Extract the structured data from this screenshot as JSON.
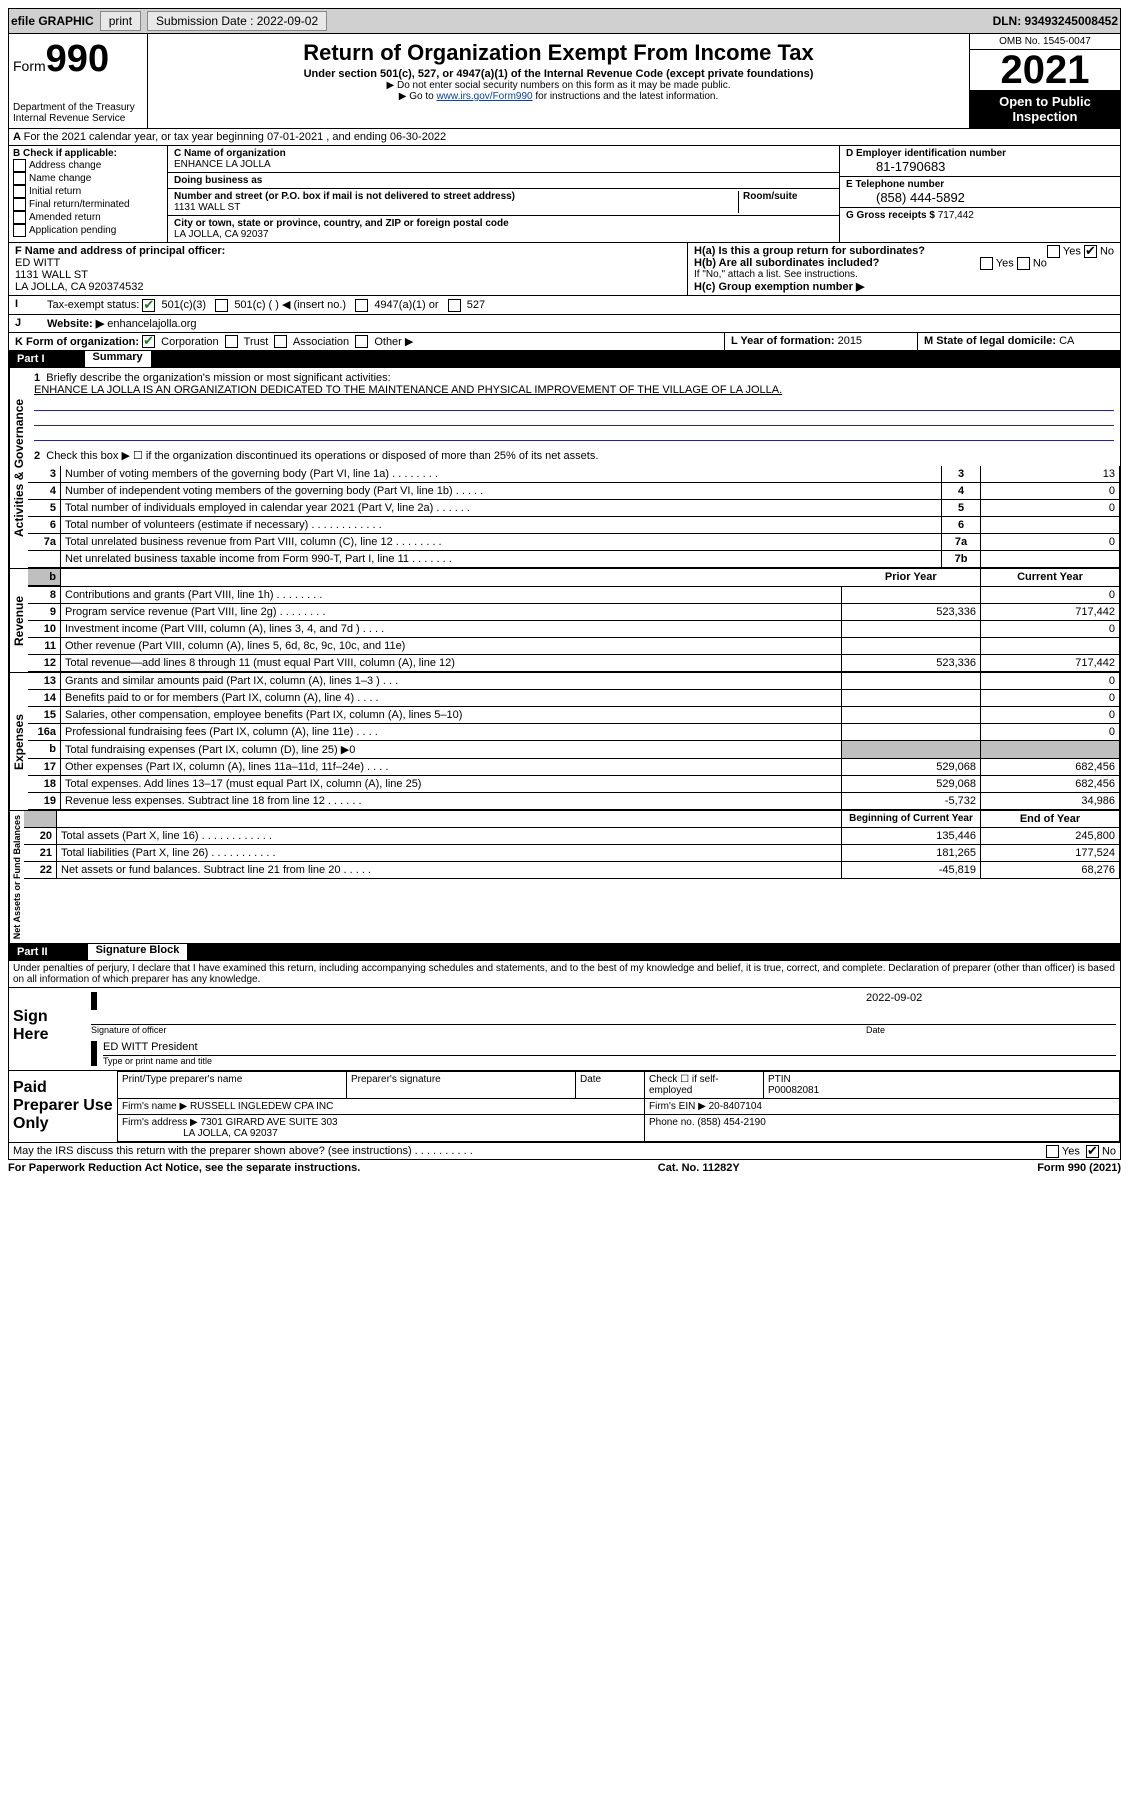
{
  "topbar": {
    "efile": "efile GRAPHIC",
    "print": "print",
    "sub_label": "Submission Date : 2022-09-02",
    "dln": "DLN: 93493245008452"
  },
  "header": {
    "form_word": "Form",
    "form_num": "990",
    "dept": "Department of the Treasury Internal Revenue Service",
    "title": "Return of Organization Exempt From Income Tax",
    "sub1": "Under section 501(c), 527, or 4947(a)(1) of the Internal Revenue Code (except private foundations)",
    "sub2": "▶ Do not enter social security numbers on this form as it may be made public.",
    "sub3_pre": "▶ Go to ",
    "sub3_link": "www.irs.gov/Form990",
    "sub3_post": " for instructions and the latest information.",
    "omb": "OMB No. 1545-0047",
    "year": "2021",
    "open": "Open to Public Inspection"
  },
  "A": {
    "text": "For the 2021 calendar year, or tax year beginning 07-01-2021   , and ending 06-30-2022"
  },
  "B": {
    "label": "B Check if applicable:",
    "opts": [
      "Address change",
      "Name change",
      "Initial return",
      "Final return/terminated",
      "Amended return",
      "Application pending"
    ]
  },
  "C": {
    "name_label": "C Name of organization",
    "name": "ENHANCE LA JOLLA",
    "dba_label": "Doing business as",
    "addr_label": "Number and street (or P.O. box if mail is not delivered to street address)",
    "room_label": "Room/suite",
    "addr": "1131 WALL ST",
    "city_label": "City or town, state or province, country, and ZIP or foreign postal code",
    "city": "LA JOLLA, CA  92037"
  },
  "D": {
    "label": "D Employer identification number",
    "val": "81-1790683"
  },
  "E": {
    "label": "E Telephone number",
    "val": "(858) 444-5892"
  },
  "G": {
    "label": "G Gross receipts $",
    "val": "717,442"
  },
  "F": {
    "label": "F Name and address of principal officer:",
    "name": "ED WITT",
    "addr1": "1131 WALL ST",
    "addr2": "LA JOLLA, CA  920374532"
  },
  "H": {
    "a": "H(a)  Is this a group return for subordinates?",
    "b": "H(b)  Are all subordinates included?",
    "b_note": "If \"No,\" attach a list. See instructions.",
    "c": "H(c)  Group exemption number ▶"
  },
  "I": {
    "label": "Tax-exempt status:",
    "o1": "501(c)(3)",
    "o2": "501(c) (   ) ◀ (insert no.)",
    "o3": "4947(a)(1) or",
    "o4": "527"
  },
  "J": {
    "label": "Website: ▶",
    "val": "enhancelajolla.org"
  },
  "K": {
    "label": "K Form of organization:",
    "o1": "Corporation",
    "o2": "Trust",
    "o3": "Association",
    "o4": "Other ▶"
  },
  "L": {
    "label": "L Year of formation:",
    "val": "2015"
  },
  "M": {
    "label": "M State of legal domicile:",
    "val": "CA"
  },
  "part1": {
    "header": "Part I",
    "title": "Summary",
    "l1_label": "Briefly describe the organization's mission or most significant activities:",
    "l1_text": "ENHANCE LA JOLLA IS AN ORGANIZATION DEDICATED TO THE MAINTENANCE AND PHYSICAL IMPROVEMENT OF THE VILLAGE OF LA JOLLA.",
    "l2": "Check this box ▶ ☐  if the organization discontinued its operations or disposed of more than 25% of its net assets.",
    "lines_gov": [
      {
        "n": "3",
        "d": "Number of voting members of the governing body (Part VI, line 1a)   .   .   .   .   .   .   .   .",
        "b": "3",
        "v": "13"
      },
      {
        "n": "4",
        "d": "Number of independent voting members of the governing body (Part VI, line 1b)   .   .   .   .   .",
        "b": "4",
        "v": "0"
      },
      {
        "n": "5",
        "d": "Total number of individuals employed in calendar year 2021 (Part V, line 2a)   .   .   .   .   .   .",
        "b": "5",
        "v": "0"
      },
      {
        "n": "6",
        "d": "Total number of volunteers (estimate if necessary)   .   .   .   .   .   .   .   .   .   .   .   .",
        "b": "6",
        "v": ""
      },
      {
        "n": "7a",
        "d": "Total unrelated business revenue from Part VIII, column (C), line 12   .   .   .   .   .   .   .   .",
        "b": "7a",
        "v": "0"
      },
      {
        "n": "",
        "d": "Net unrelated business taxable income from Form 990-T, Part I, line 11   .   .   .   .   .   .   .",
        "b": "7b",
        "v": ""
      }
    ],
    "col_prior": "Prior Year",
    "col_current": "Current Year",
    "lines_rev": [
      {
        "n": "8",
        "d": "Contributions and grants (Part VIII, line 1h)   .   .   .   .   .   .   .   .",
        "p": "",
        "c": "0"
      },
      {
        "n": "9",
        "d": "Program service revenue (Part VIII, line 2g)   .   .   .   .   .   .   .   .",
        "p": "523,336",
        "c": "717,442"
      },
      {
        "n": "10",
        "d": "Investment income (Part VIII, column (A), lines 3, 4, and 7d )   .   .   .   .",
        "p": "",
        "c": "0"
      },
      {
        "n": "11",
        "d": "Other revenue (Part VIII, column (A), lines 5, 6d, 8c, 9c, 10c, and 11e)",
        "p": "",
        "c": ""
      },
      {
        "n": "12",
        "d": "Total revenue—add lines 8 through 11 (must equal Part VIII, column (A), line 12)",
        "p": "523,336",
        "c": "717,442"
      }
    ],
    "lines_exp": [
      {
        "n": "13",
        "d": "Grants and similar amounts paid (Part IX, column (A), lines 1–3 )   .   .   .",
        "p": "",
        "c": "0"
      },
      {
        "n": "14",
        "d": "Benefits paid to or for members (Part IX, column (A), line 4)   .   .   .   .",
        "p": "",
        "c": "0"
      },
      {
        "n": "15",
        "d": "Salaries, other compensation, employee benefits (Part IX, column (A), lines 5–10)",
        "p": "",
        "c": "0"
      },
      {
        "n": "16a",
        "d": "Professional fundraising fees (Part IX, column (A), line 11e)   .   .   .   .",
        "p": "",
        "c": "0"
      },
      {
        "n": "b",
        "d": "Total fundraising expenses (Part IX, column (D), line 25) ▶0",
        "p": "grey",
        "c": "grey"
      },
      {
        "n": "17",
        "d": "Other expenses (Part IX, column (A), lines 11a–11d, 11f–24e)   .   .   .   .",
        "p": "529,068",
        "c": "682,456"
      },
      {
        "n": "18",
        "d": "Total expenses. Add lines 13–17 (must equal Part IX, column (A), line 25)",
        "p": "529,068",
        "c": "682,456"
      },
      {
        "n": "19",
        "d": "Revenue less expenses. Subtract line 18 from line 12   .   .   .   .   .   .",
        "p": "-5,732",
        "c": "34,986"
      }
    ],
    "col_begin": "Beginning of Current Year",
    "col_end": "End of Year",
    "lines_net": [
      {
        "n": "20",
        "d": "Total assets (Part X, line 16)   .   .   .   .   .   .   .   .   .   .   .   .",
        "p": "135,446",
        "c": "245,800"
      },
      {
        "n": "21",
        "d": "Total liabilities (Part X, line 26)   .   .   .   .   .   .   .   .   .   .   .",
        "p": "181,265",
        "c": "177,524"
      },
      {
        "n": "22",
        "d": "Net assets or fund balances. Subtract line 21 from line 20   .   .   .   .   .",
        "p": "-45,819",
        "c": "68,276"
      }
    ]
  },
  "part2": {
    "header": "Part II",
    "title": "Signature Block",
    "decl": "Under penalties of perjury, I declare that I have examined this return, including accompanying schedules and statements, and to the best of my knowledge and belief, it is true, correct, and complete. Declaration of preparer (other than officer) is based on all information of which preparer has any knowledge.",
    "sign_here": "Sign Here",
    "sig_officer": "Signature of officer",
    "sig_date_label": "Date",
    "sig_date": "2022-09-02",
    "officer_name": "ED WITT President",
    "officer_sub": "Type or print name and title"
  },
  "paid": {
    "label": "Paid Preparer Use Only",
    "h1": "Print/Type preparer's name",
    "h2": "Preparer's signature",
    "h3": "Date",
    "h4_check": "Check ☐ if self-employed",
    "h4_ptin_label": "PTIN",
    "h4_ptin": "P00082081",
    "firm_name_label": "Firm's name    ▶",
    "firm_name": "RUSSELL INGLEDEW CPA INC",
    "firm_ein_label": "Firm's EIN ▶",
    "firm_ein": "20-8407104",
    "firm_addr_label": "Firm's address ▶",
    "firm_addr1": "7301 GIRARD AVE SUITE 303",
    "firm_addr2": "LA JOLLA, CA  92037",
    "phone_label": "Phone no.",
    "phone": "(858) 454-2190"
  },
  "discuss": "May the IRS discuss this return with the preparer shown above? (see instructions)   .   .   .   .   .   .   .   .   .   .",
  "footer": {
    "l": "For Paperwork Reduction Act Notice, see the separate instructions.",
    "m": "Cat. No. 11282Y",
    "r": "Form 990 (2021)"
  },
  "vert": {
    "gov": "Activities & Governance",
    "rev": "Revenue",
    "exp": "Expenses",
    "net": "Net Assets or Fund Balances"
  }
}
